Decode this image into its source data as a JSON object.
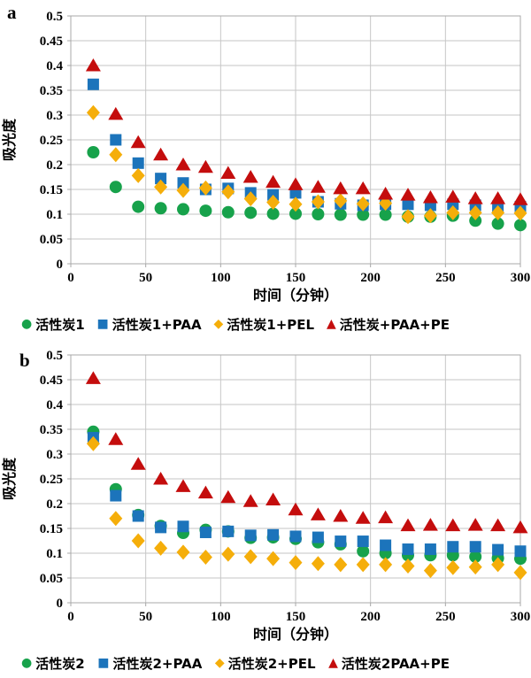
{
  "page": {
    "background": "#ffffff"
  },
  "colors": {
    "green": "#17A24B",
    "blue": "#1C74BB",
    "yellow": "#F5AE0A",
    "red": "#C40D0D",
    "grid": "#c6c6c6",
    "axis": "#a8a8a8",
    "text": "#000000"
  },
  "chart_data": [
    {
      "panel_label": "a",
      "type": "scatter",
      "title": "",
      "xlabel": "时间（分钟）",
      "ylabel": "吸光度",
      "xlim": [
        0,
        300
      ],
      "ylim": [
        0,
        0.5
      ],
      "grid": true,
      "legend_position": "bottom",
      "xtick_labels": [
        "0",
        "50",
        "100",
        "150",
        "200",
        "250",
        "300"
      ],
      "ytick_labels": [
        "0",
        "0.05",
        "0.1",
        "0.15",
        "0.2",
        "0.25",
        "0.3",
        "0.35",
        "0.4",
        "0.45",
        "0.5"
      ],
      "x": [
        15,
        30,
        45,
        60,
        75,
        90,
        105,
        120,
        135,
        150,
        165,
        180,
        195,
        210,
        225,
        240,
        255,
        270,
        285,
        300
      ],
      "series": [
        {
          "name": "活性炭1",
          "marker": "circle",
          "color_key": "green",
          "values": [
            0.225,
            0.155,
            0.115,
            0.112,
            0.11,
            0.107,
            0.104,
            0.103,
            0.101,
            0.101,
            0.1,
            0.099,
            0.099,
            0.099,
            0.095,
            0.095,
            0.097,
            0.087,
            0.081,
            0.078
          ]
        },
        {
          "name": "活性炭1+PAA",
          "marker": "square",
          "color_key": "blue",
          "values": [
            0.362,
            0.25,
            0.203,
            0.172,
            0.163,
            0.15,
            0.152,
            0.143,
            0.139,
            0.143,
            0.125,
            0.121,
            0.118,
            0.12,
            0.12,
            0.118,
            0.12,
            0.118,
            0.116,
            0.115
          ]
        },
        {
          "name": "活性炭1+PEL",
          "marker": "diamond",
          "color_key": "yellow",
          "values": [
            0.305,
            0.22,
            0.178,
            0.155,
            0.148,
            0.153,
            0.145,
            0.131,
            0.124,
            0.12,
            0.125,
            0.127,
            0.121,
            0.122,
            0.095,
            0.097,
            0.103,
            0.103,
            0.103,
            0.102
          ]
        },
        {
          "name": "活性炭+PAA+PE",
          "marker": "triangle",
          "color_key": "red",
          "values": [
            0.4,
            0.302,
            0.245,
            0.22,
            0.2,
            0.195,
            0.183,
            0.175,
            0.165,
            0.16,
            0.155,
            0.152,
            0.152,
            0.141,
            0.139,
            0.134,
            0.135,
            0.132,
            0.132,
            0.13
          ]
        }
      ]
    },
    {
      "panel_label": "b",
      "type": "scatter",
      "title": "",
      "xlabel": "时间（分钟）",
      "ylabel": "吸光度",
      "xlim": [
        0,
        300
      ],
      "ylim": [
        0,
        0.5
      ],
      "grid": true,
      "legend_position": "bottom",
      "xtick_labels": [
        "0",
        "50",
        "100",
        "150",
        "200",
        "250",
        "300"
      ],
      "ytick_labels": [
        "0",
        "0.05",
        "0.1",
        "0.15",
        "0.2",
        "0.25",
        "0.3",
        "0.35",
        "0.4",
        "0.45",
        "0.5"
      ],
      "x": [
        15,
        30,
        45,
        60,
        75,
        90,
        105,
        120,
        135,
        150,
        165,
        180,
        195,
        210,
        225,
        240,
        255,
        270,
        285,
        300
      ],
      "series": [
        {
          "name": "活性炭2",
          "marker": "circle",
          "color_key": "green",
          "values": [
            0.345,
            0.229,
            0.177,
            0.155,
            0.141,
            0.147,
            0.144,
            0.131,
            0.132,
            0.129,
            0.122,
            0.118,
            0.104,
            0.1,
            0.096,
            0.096,
            0.096,
            0.093,
            0.09,
            0.089
          ]
        },
        {
          "name": "活性炭2+PAA",
          "marker": "square",
          "color_key": "blue",
          "values": [
            0.333,
            0.216,
            0.175,
            0.152,
            0.154,
            0.142,
            0.144,
            0.136,
            0.137,
            0.134,
            0.132,
            0.124,
            0.124,
            0.116,
            0.108,
            0.108,
            0.113,
            0.113,
            0.107,
            0.104
          ]
        },
        {
          "name": "活性炭2+PEL",
          "marker": "diamond",
          "color_key": "yellow",
          "values": [
            0.321,
            0.17,
            0.125,
            0.11,
            0.102,
            0.092,
            0.098,
            0.093,
            0.089,
            0.081,
            0.079,
            0.077,
            0.077,
            0.077,
            0.074,
            0.065,
            0.071,
            0.072,
            0.077,
            0.061
          ]
        },
        {
          "name": "活性炭2PAA+PE",
          "marker": "triangle",
          "color_key": "red",
          "values": [
            0.453,
            0.33,
            0.28,
            0.25,
            0.235,
            0.222,
            0.213,
            0.205,
            0.208,
            0.188,
            0.178,
            0.175,
            0.171,
            0.172,
            0.156,
            0.157,
            0.156,
            0.157,
            0.156,
            0.152
          ]
        }
      ]
    }
  ]
}
